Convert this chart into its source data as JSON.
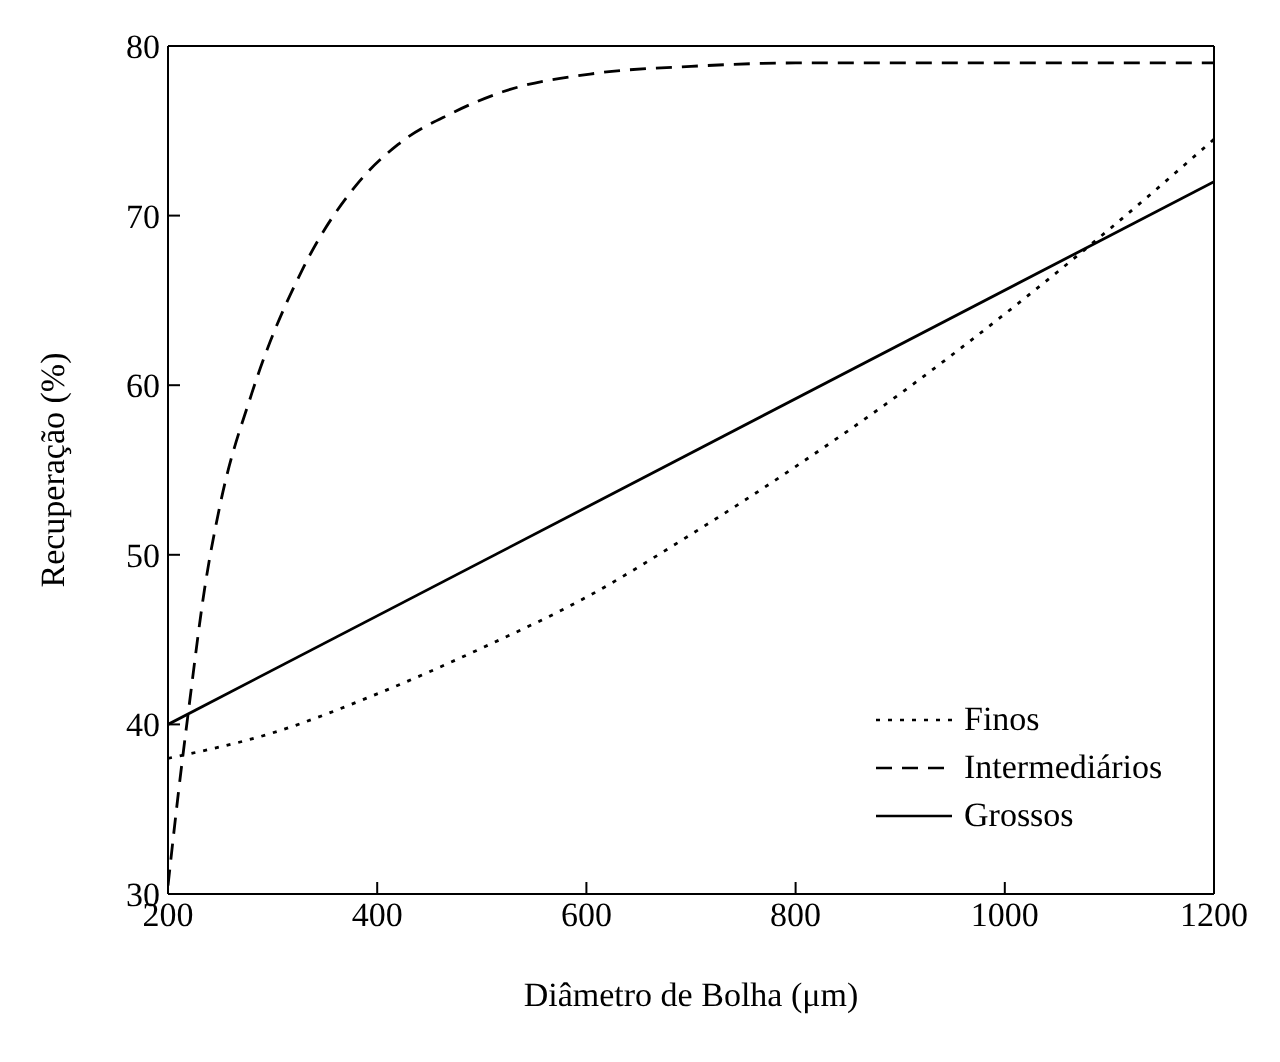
{
  "chart_data": {
    "type": "line",
    "xlabel": "Diâmetro de Bolha (μm)",
    "ylabel": "Recuperação (%)",
    "xlim": [
      200,
      1200
    ],
    "ylim": [
      30,
      80
    ],
    "xticks": [
      200,
      400,
      600,
      800,
      1000,
      1200
    ],
    "yticks": [
      30,
      40,
      50,
      60,
      70,
      80
    ],
    "grid": false,
    "legend": "bottom right",
    "marker": "none",
    "series": [
      {
        "name": "Finos",
        "color": "#000000",
        "line_style": "dotted",
        "x": [
          200,
          300,
          400,
          500,
          600,
          700,
          800,
          900,
          1000,
          1100,
          1200
        ],
        "values": [
          38,
          39.5,
          41.8,
          44.5,
          47.5,
          51.2,
          55.2,
          59.5,
          64.2,
          69.2,
          74.5
        ]
      },
      {
        "name": "Intermediários",
        "color": "#000000",
        "line_style": "dashed",
        "x": [
          200,
          210,
          220,
          235,
          250,
          280,
          330,
          380,
          420,
          470,
          520,
          610,
          700,
          800,
          1200
        ],
        "values": [
          30.5,
          36,
          41,
          48,
          53,
          59.5,
          67,
          71.8,
          74.2,
          76,
          77.3,
          78.4,
          78.8,
          79,
          79
        ]
      },
      {
        "name": "Grossos",
        "color": "#000000",
        "line_style": "solid",
        "x": [
          200,
          1200
        ],
        "values": [
          40,
          72
        ]
      }
    ]
  }
}
